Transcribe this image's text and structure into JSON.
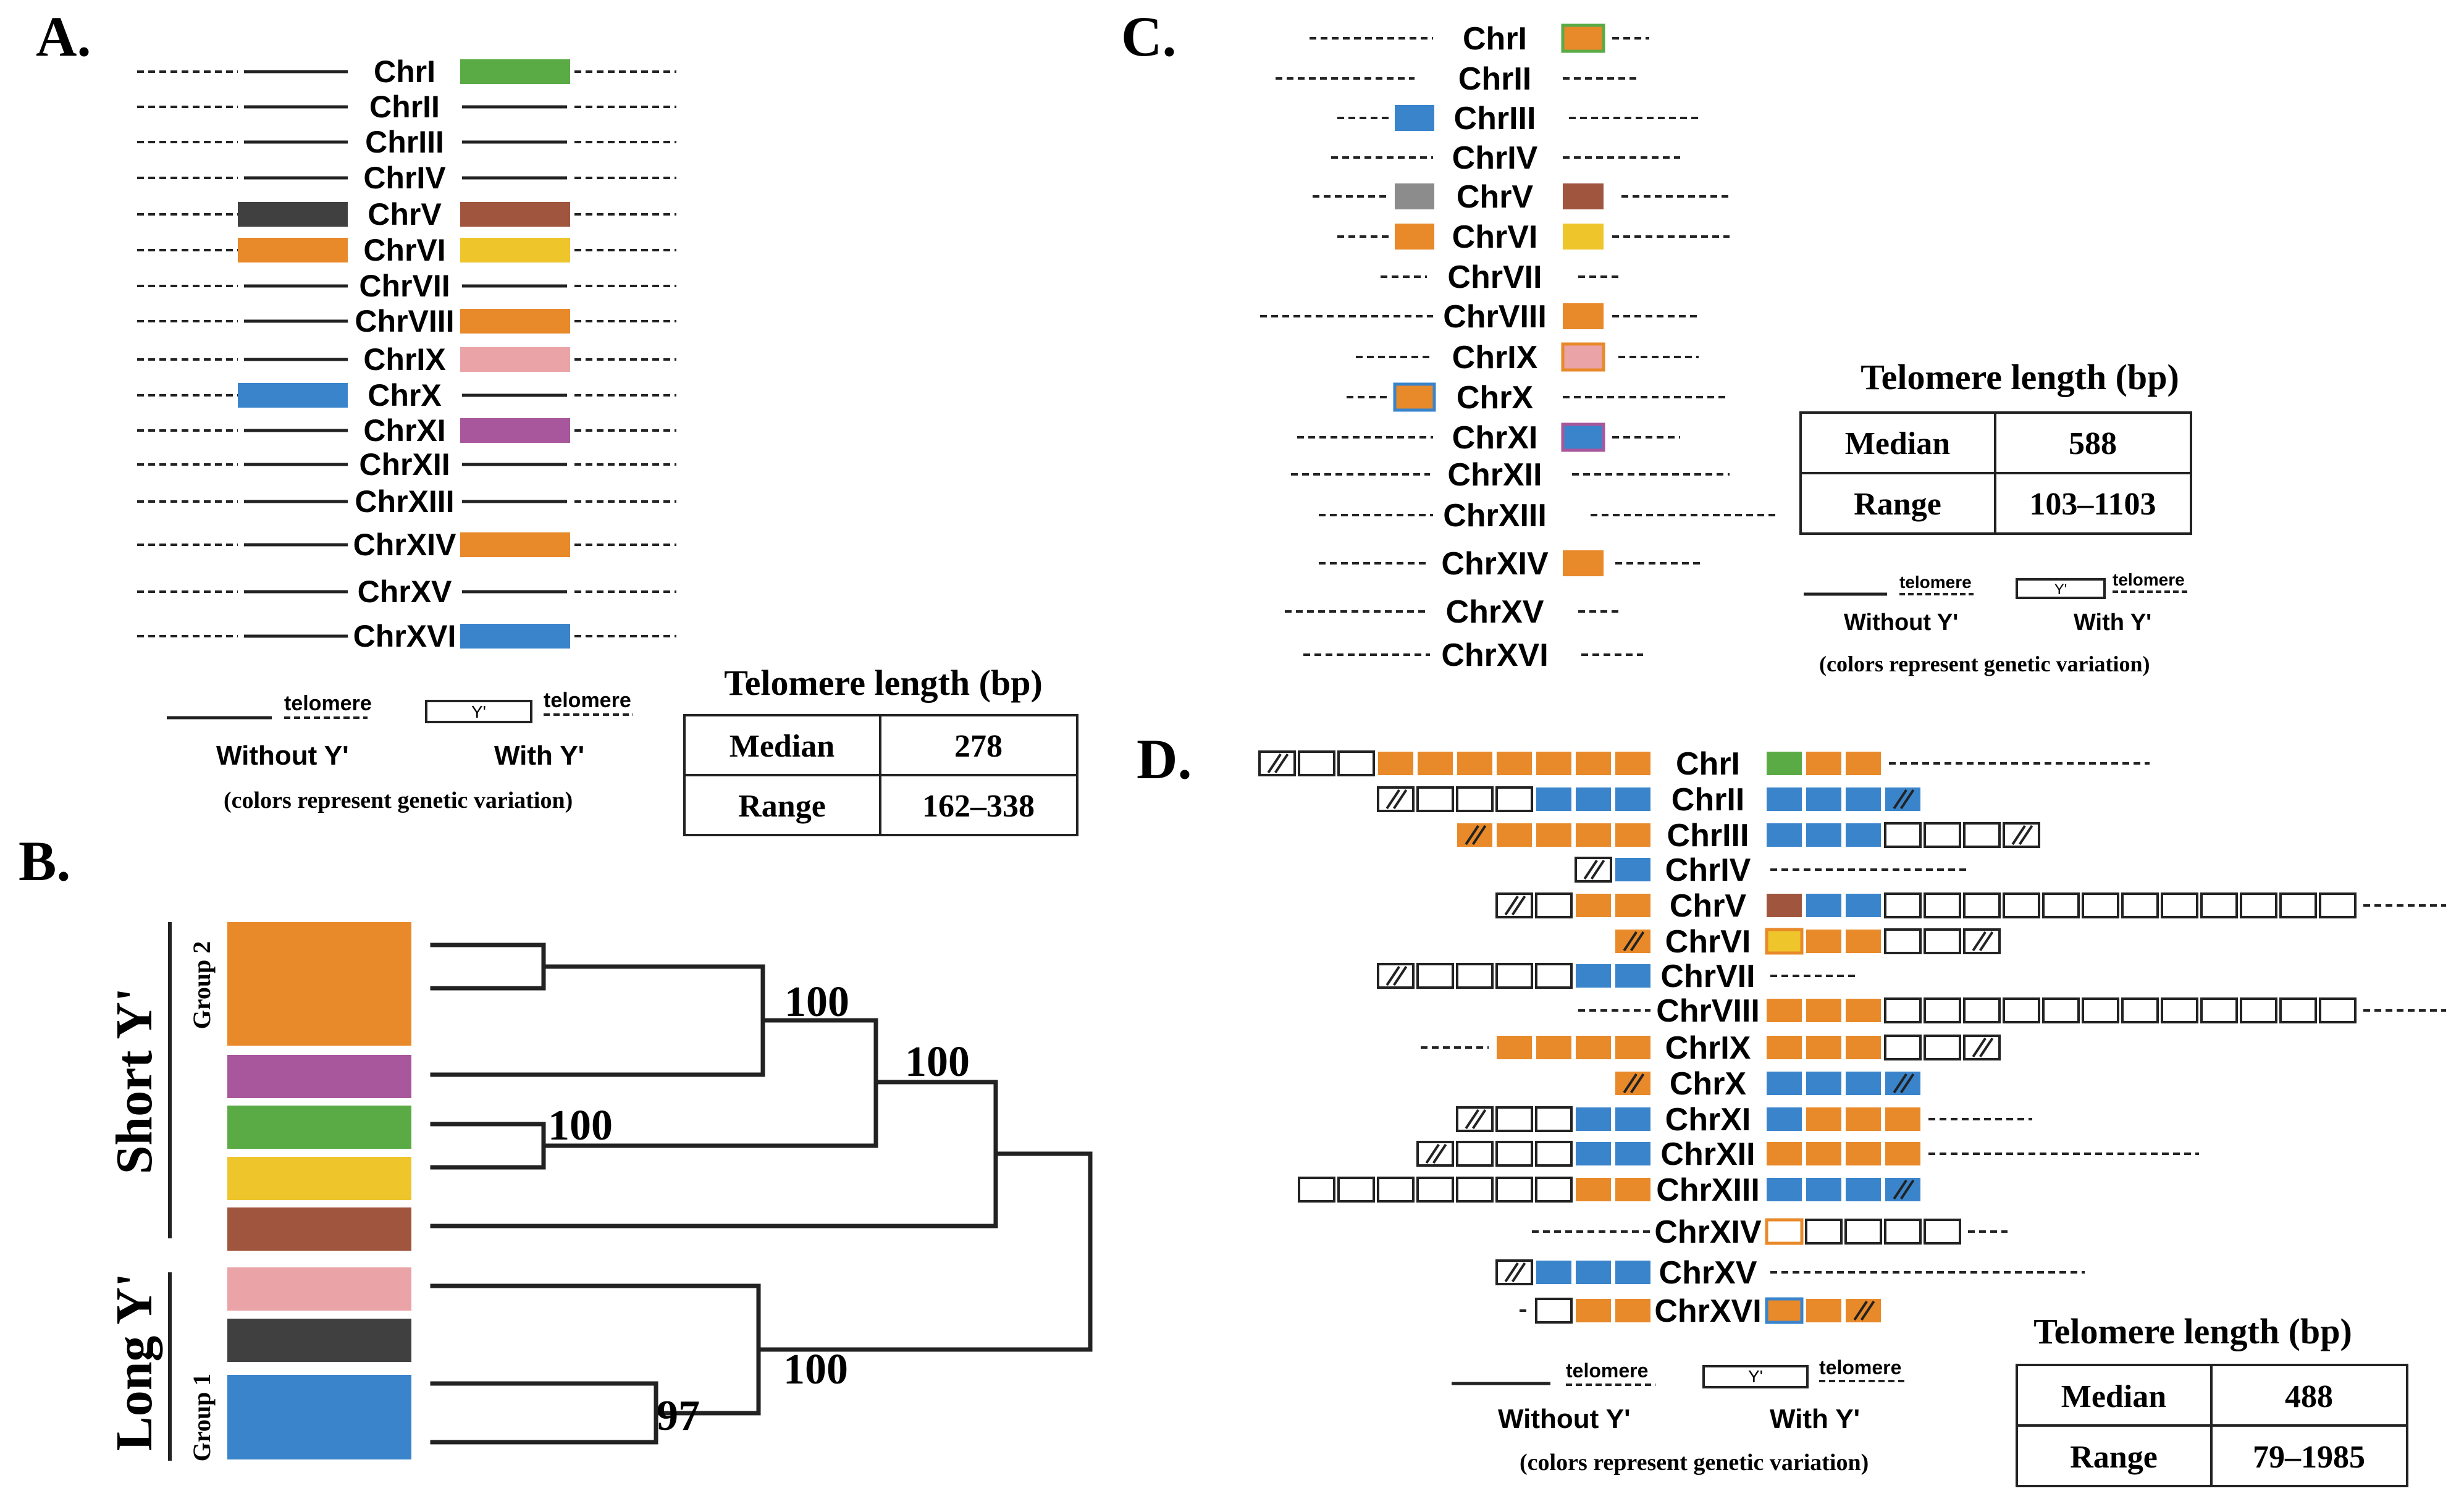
{
  "colors": {
    "green": "#5aab45",
    "orange": "#e8892a",
    "blue": "#3a84cc",
    "dark": "#404040",
    "brown": "#a0563e",
    "yellow": "#eec52b",
    "pink": "#eaa3a6",
    "purple": "#a8579c",
    "grey": "#8c8c8c",
    "line": "#222222"
  },
  "panel_a": {
    "label": "A.",
    "rows": [
      {
        "name": "ChrI",
        "left": null,
        "right": "green"
      },
      {
        "name": "ChrII",
        "left": null,
        "right": null
      },
      {
        "name": "ChrIII",
        "left": null,
        "right": null
      },
      {
        "name": "ChrIV",
        "left": null,
        "right": null
      },
      {
        "name": "ChrV",
        "left": "dark",
        "right": "brown"
      },
      {
        "name": "ChrVI",
        "left": "orange",
        "right": "yellow"
      },
      {
        "name": "ChrVII",
        "left": null,
        "right": null
      },
      {
        "name": "ChrVIII",
        "left": null,
        "right": "orange"
      },
      {
        "name": "ChrIX",
        "left": null,
        "right": "pink"
      },
      {
        "name": "ChrX",
        "left": "blue",
        "right": null
      },
      {
        "name": "ChrXI",
        "left": null,
        "right": "purple"
      },
      {
        "name": "ChrXII",
        "left": null,
        "right": null
      },
      {
        "name": "ChrXIII",
        "left": null,
        "right": null
      },
      {
        "name": "ChrXIV",
        "left": null,
        "right": "orange"
      },
      {
        "name": "ChrXV",
        "left": null,
        "right": null
      },
      {
        "name": "ChrXVI",
        "left": null,
        "right": "blue"
      }
    ],
    "legend": {
      "telomere": "telomere",
      "y_box": "Y'",
      "without": "Without Y'",
      "with": "With Y'",
      "note": "(colors represent genetic variation)"
    },
    "table": {
      "title": "Telomere length (bp)",
      "median_label": "Median",
      "median": "278",
      "range_label": "Range",
      "range": "162–338"
    }
  },
  "panel_b": {
    "label": "B.",
    "group_labels": [
      "Short Y'",
      "Long Y'"
    ],
    "subgroups": [
      "Group 2",
      "Group 1"
    ],
    "swatches": [
      "orange",
      "purple",
      "green",
      "yellow",
      "brown",
      "pink",
      "dark",
      "blue"
    ],
    "bootstrap": [
      "100",
      "100",
      "100",
      "100",
      "97"
    ]
  },
  "panel_c": {
    "label": "C.",
    "rows": [
      {
        "name": "ChrI",
        "left": null,
        "right": "orange",
        "right_border": "green"
      },
      {
        "name": "ChrII",
        "left": null,
        "right": null
      },
      {
        "name": "ChrIII",
        "left": "blue",
        "right": null
      },
      {
        "name": "ChrIV",
        "left": null,
        "right": null
      },
      {
        "name": "ChrV",
        "left": "grey",
        "right": "brown"
      },
      {
        "name": "ChrVI",
        "left": "orange",
        "right": "yellow"
      },
      {
        "name": "ChrVII",
        "left": null,
        "right": null
      },
      {
        "name": "ChrVIII",
        "left": null,
        "right": "orange"
      },
      {
        "name": "ChrIX",
        "left": null,
        "right": "pink",
        "right_border": "orange"
      },
      {
        "name": "ChrX",
        "left": "orange",
        "left_border": "blue",
        "right": null
      },
      {
        "name": "ChrXI",
        "left": null,
        "right": "blue",
        "right_border": "purple"
      },
      {
        "name": "ChrXII",
        "left": null,
        "right": null
      },
      {
        "name": "ChrXIII",
        "left": null,
        "right": null
      },
      {
        "name": "ChrXIV",
        "left": null,
        "right": "orange"
      },
      {
        "name": "ChrXV",
        "left": null,
        "right": null
      },
      {
        "name": "ChrXVI",
        "left": null,
        "right": null
      }
    ],
    "legend": {
      "telomere": "telomere",
      "y_box": "Y'",
      "without": "Without Y'",
      "with": "With Y'",
      "note": "(colors represent genetic variation)"
    },
    "table": {
      "title": "Telomere length (bp)",
      "median_label": "Median",
      "median": "588",
      "range_label": "Range",
      "range": "103–1103"
    }
  },
  "panel_d": {
    "label": "D.",
    "rows": [
      {
        "name": "ChrI",
        "left": [
          "h",
          "w",
          "w",
          "o",
          "o",
          "o",
          "o",
          "o",
          "o",
          "o"
        ],
        "right": [
          "g",
          "o",
          "o"
        ]
      },
      {
        "name": "ChrII",
        "left": [
          "h",
          "w",
          "w",
          "w",
          "b",
          "b",
          "b"
        ],
        "right": [
          "b",
          "b",
          "b",
          "hb"
        ]
      },
      {
        "name": "ChrIII",
        "left": [
          "ho",
          "o",
          "o",
          "o",
          "o"
        ],
        "right": [
          "b",
          "b",
          "b",
          "w",
          "w",
          "w",
          "h"
        ]
      },
      {
        "name": "ChrIV",
        "left": [
          "h",
          "b"
        ],
        "right": []
      },
      {
        "name": "ChrV",
        "left": [
          "h",
          "w",
          "o",
          "o"
        ],
        "right": [
          "br",
          "b",
          "b",
          "w",
          "w",
          "w",
          "w",
          "w",
          "w",
          "w",
          "w",
          "w",
          "w",
          "w",
          "w"
        ]
      },
      {
        "name": "ChrVI",
        "left": [
          "ho"
        ],
        "right": [
          "y",
          "o",
          "o",
          "w",
          "w",
          "h"
        ]
      },
      {
        "name": "ChrVII",
        "left": [
          "h",
          "w",
          "w",
          "w",
          "w",
          "b",
          "b"
        ],
        "right": []
      },
      {
        "name": "ChrVIII",
        "left": [],
        "right": [
          "o",
          "o",
          "o",
          "w",
          "w",
          "w",
          "w",
          "w",
          "w",
          "w",
          "w",
          "w",
          "w",
          "w",
          "w"
        ]
      },
      {
        "name": "ChrIX",
        "left": [
          "o",
          "o",
          "o",
          "o"
        ],
        "right": [
          "o",
          "o",
          "o",
          "w",
          "w",
          "h"
        ]
      },
      {
        "name": "ChrX",
        "left": [
          "ho"
        ],
        "right": [
          "b",
          "b",
          "b",
          "hb"
        ]
      },
      {
        "name": "ChrXI",
        "left": [
          "h",
          "w",
          "w",
          "b",
          "b"
        ],
        "right": [
          "b",
          "o",
          "o",
          "o"
        ]
      },
      {
        "name": "ChrXII",
        "left": [
          "h",
          "w",
          "w",
          "w",
          "b",
          "b"
        ],
        "right": [
          "o",
          "o",
          "o",
          "o"
        ]
      },
      {
        "name": "ChrXIII",
        "left": [
          "w",
          "w",
          "w",
          "w",
          "w",
          "w",
          "w",
          "o",
          "o"
        ],
        "right": [
          "b",
          "b",
          "b",
          "hb"
        ]
      },
      {
        "name": "ChrXIV",
        "left": [],
        "right": [
          "wo",
          "w",
          "w",
          "w",
          "w"
        ]
      },
      {
        "name": "ChrXV",
        "left": [
          "h",
          "b",
          "b",
          "b"
        ],
        "right": []
      },
      {
        "name": "ChrXVI",
        "left": [
          "w",
          "o",
          "o"
        ],
        "right": [
          "ob",
          "o",
          "ho"
        ]
      }
    ],
    "legend": {
      "telomere": "telomere",
      "y_box": "Y'",
      "without": "Without Y'",
      "with": "With Y'",
      "note": "(colors represent genetic variation)"
    },
    "table": {
      "title": "Telomere length (bp)",
      "median_label": "Median",
      "median": "488",
      "range_label": "Range",
      "range": "79–1985"
    }
  }
}
